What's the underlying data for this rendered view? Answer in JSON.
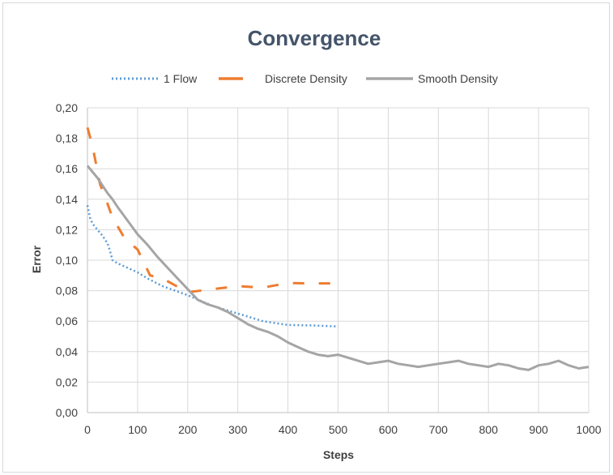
{
  "chart_data": {
    "type": "line",
    "title": "Convergence",
    "xlabel": "Steps",
    "ylabel": "Error",
    "xlim": [
      0,
      1000
    ],
    "ylim": [
      0,
      0.2
    ],
    "x_ticks": [
      0,
      100,
      200,
      300,
      400,
      500,
      600,
      700,
      800,
      900,
      1000
    ],
    "y_ticks": [
      0,
      0.02,
      0.04,
      0.06,
      0.08,
      0.1,
      0.12,
      0.14,
      0.16,
      0.18,
      0.2
    ],
    "x_tick_labels": [
      "0",
      "100",
      "200",
      "300",
      "400",
      "500",
      "600",
      "700",
      "800",
      "900",
      "1000"
    ],
    "y_tick_labels": [
      "0,00",
      "0,02",
      "0,04",
      "0,06",
      "0,08",
      "0,10",
      "0,12",
      "0,14",
      "0,16",
      "0,18",
      "0,20"
    ],
    "grid": true,
    "legend_position": "top",
    "series": [
      {
        "name": "1 Flow",
        "style": "dotted",
        "color": "#5b9bd5",
        "x": [
          0,
          5,
          10,
          20,
          30,
          40,
          45,
          50,
          60,
          80,
          100,
          120,
          150,
          200,
          250,
          300,
          350,
          400,
          450,
          500
        ],
        "y": [
          0.136,
          0.128,
          0.124,
          0.12,
          0.116,
          0.111,
          0.106,
          0.1,
          0.098,
          0.095,
          0.092,
          0.088,
          0.083,
          0.077,
          0.07,
          0.065,
          0.06,
          0.0575,
          0.0572,
          0.0565
        ]
      },
      {
        "name": "Discrete Density",
        "style": "dashed",
        "color": "#ed7d31",
        "x": [
          0,
          10,
          25,
          40,
          50,
          75,
          100,
          125,
          150,
          200,
          250,
          300,
          350,
          400,
          450,
          500
        ],
        "y": [
          0.187,
          0.175,
          0.15,
          0.137,
          0.128,
          0.114,
          0.107,
          0.09,
          0.088,
          0.079,
          0.081,
          0.083,
          0.082,
          0.085,
          0.0848,
          0.0848
        ]
      },
      {
        "name": "Smooth Density",
        "style": "solid",
        "color": "#a5a5a5",
        "x": [
          0,
          10,
          20,
          30,
          40,
          50,
          60,
          80,
          100,
          120,
          140,
          160,
          180,
          200,
          220,
          240,
          260,
          280,
          300,
          320,
          340,
          360,
          380,
          400,
          420,
          440,
          460,
          480,
          500,
          520,
          540,
          560,
          580,
          600,
          620,
          640,
          660,
          680,
          700,
          720,
          740,
          760,
          780,
          800,
          820,
          840,
          860,
          880,
          900,
          920,
          940,
          960,
          980,
          1000
        ],
        "y": [
          0.162,
          0.158,
          0.154,
          0.149,
          0.144,
          0.14,
          0.135,
          0.126,
          0.117,
          0.11,
          0.102,
          0.095,
          0.088,
          0.081,
          0.074,
          0.071,
          0.069,
          0.066,
          0.062,
          0.058,
          0.055,
          0.053,
          0.05,
          0.046,
          0.043,
          0.04,
          0.038,
          0.037,
          0.038,
          0.036,
          0.034,
          0.032,
          0.033,
          0.034,
          0.032,
          0.031,
          0.03,
          0.031,
          0.032,
          0.033,
          0.034,
          0.032,
          0.031,
          0.03,
          0.032,
          0.031,
          0.029,
          0.028,
          0.031,
          0.032,
          0.034,
          0.031,
          0.029,
          0.03
        ]
      }
    ]
  }
}
